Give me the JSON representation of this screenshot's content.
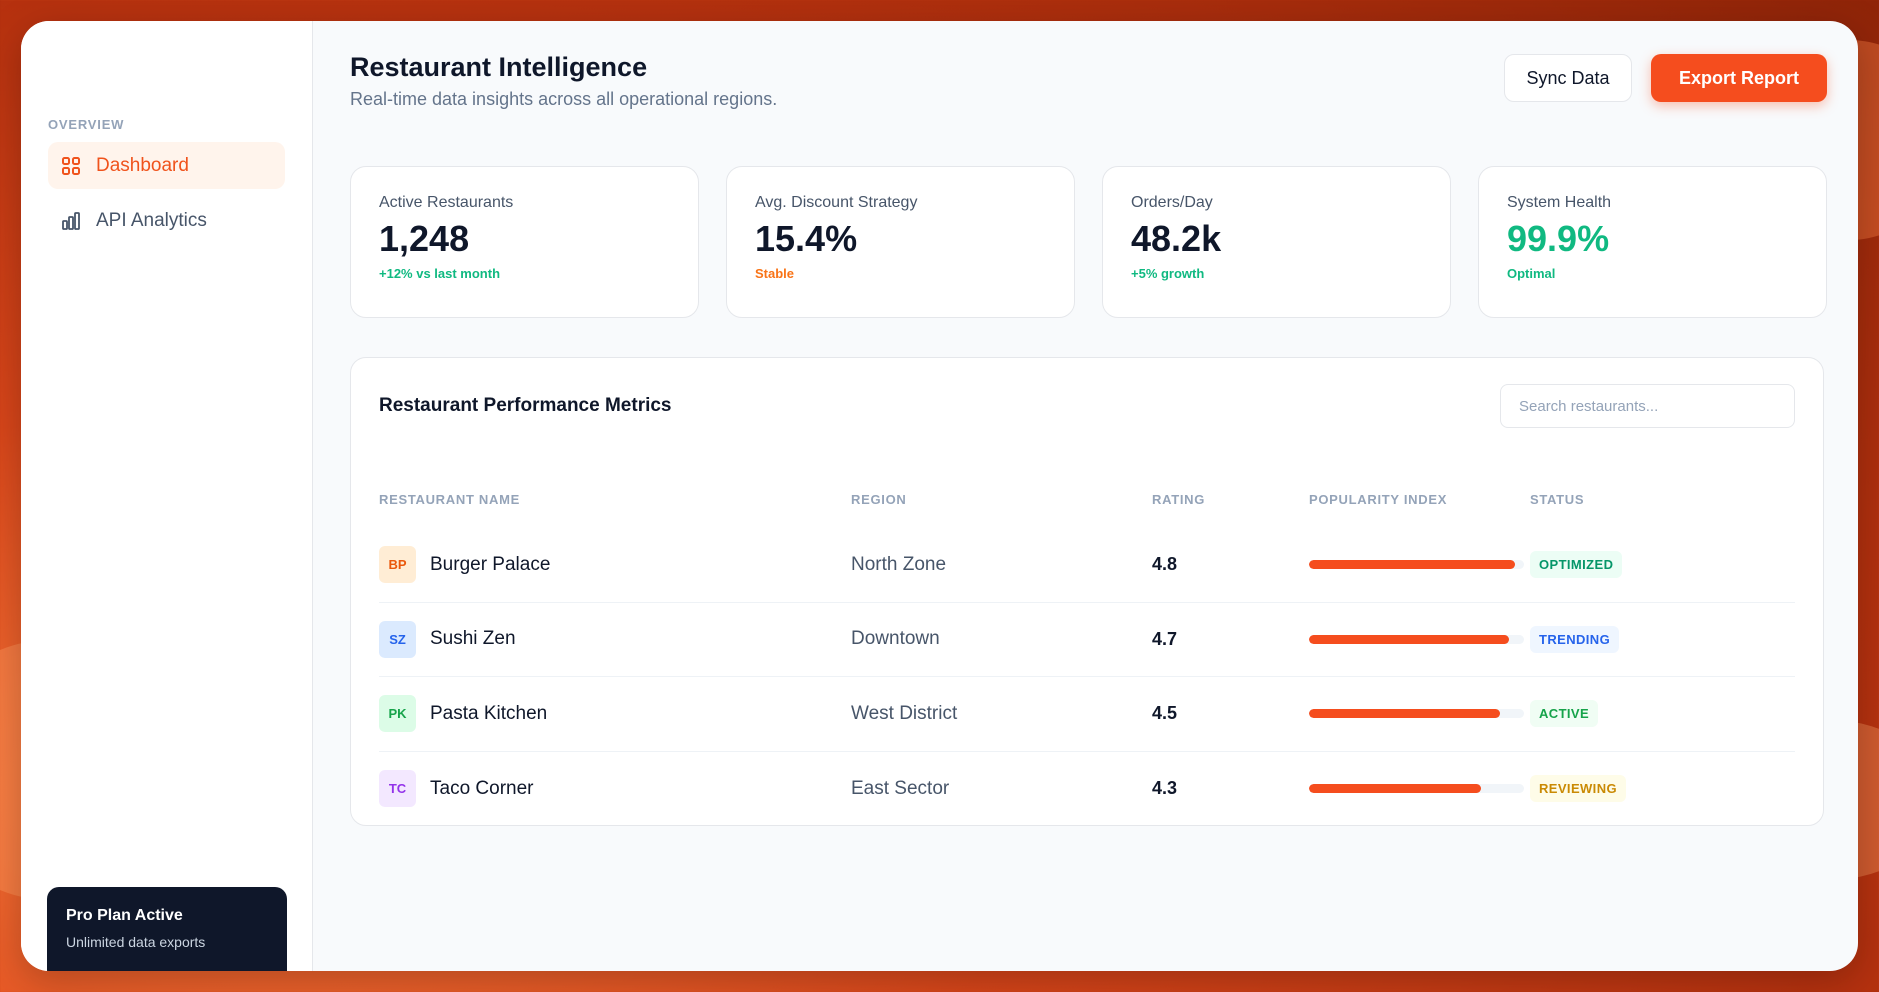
{
  "sidebar": {
    "section_label": "OVERVIEW",
    "items": [
      {
        "label": "Dashboard",
        "icon": "grid-icon",
        "active": true
      },
      {
        "label": "API Analytics",
        "icon": "bar-chart-icon",
        "active": false
      }
    ],
    "plan": {
      "title": "Pro Plan Active",
      "subtitle": "Unlimited data exports"
    }
  },
  "header": {
    "title": "Restaurant Intelligence",
    "subtitle": "Real-time data insights across all operational regions.",
    "sync_label": "Sync Data",
    "export_label": "Export Report"
  },
  "stats": [
    {
      "label": "Active Restaurants",
      "value": "1,248",
      "note": "+12% vs last month",
      "value_color": "#0f172a",
      "note_color": "#10b981"
    },
    {
      "label": "Avg. Discount Strategy",
      "value": "15.4%",
      "note": "Stable",
      "value_color": "#0f172a",
      "note_color": "#f97316"
    },
    {
      "label": "Orders/Day",
      "value": "48.2k",
      "note": "+5% growth",
      "value_color": "#0f172a",
      "note_color": "#10b981"
    },
    {
      "label": "System Health",
      "value": "99.9%",
      "note": "Optimal",
      "value_color": "#10b981",
      "note_color": "#10b981"
    }
  ],
  "table": {
    "title": "Restaurant Performance Metrics",
    "search_placeholder": "Search restaurants...",
    "columns": [
      "RESTAURANT NAME",
      "REGION",
      "RATING",
      "POPULARITY INDEX",
      "STATUS"
    ],
    "rows": [
      {
        "initials": "BP",
        "name": "Burger Palace",
        "region": "North Zone",
        "rating": "4.8",
        "popularity": 0.96,
        "status": "OPTIMIZED",
        "avatar_bg": "#ffedd5",
        "avatar_fg": "#ea580c",
        "badge_bg": "#ecfdf5",
        "badge_fg": "#059669"
      },
      {
        "initials": "SZ",
        "name": "Sushi Zen",
        "region": "Downtown",
        "rating": "4.7",
        "popularity": 0.93,
        "status": "TRENDING",
        "avatar_bg": "#dbeafe",
        "avatar_fg": "#2563eb",
        "badge_bg": "#eff6ff",
        "badge_fg": "#2563eb"
      },
      {
        "initials": "PK",
        "name": "Pasta Kitchen",
        "region": "West District",
        "rating": "4.5",
        "popularity": 0.89,
        "status": "ACTIVE",
        "avatar_bg": "#dcfce7",
        "avatar_fg": "#16a34a",
        "badge_bg": "#f0fdf4",
        "badge_fg": "#16a34a"
      },
      {
        "initials": "TC",
        "name": "Taco Corner",
        "region": "East Sector",
        "rating": "4.3",
        "popularity": 0.8,
        "status": "REVIEWING",
        "avatar_bg": "#f3e8ff",
        "avatar_fg": "#9333ea",
        "badge_bg": "#fefce8",
        "badge_fg": "#ca8a04"
      }
    ]
  }
}
